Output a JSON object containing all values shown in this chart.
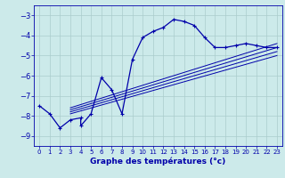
{
  "xlabel": "Graphe des températures (°c)",
  "bg_color": "#cceaea",
  "line_color": "#0000aa",
  "grid_color": "#aacccc",
  "xlim": [
    -0.5,
    23.5
  ],
  "ylim": [
    -9.5,
    -2.5
  ],
  "yticks": [
    -9,
    -8,
    -7,
    -6,
    -5,
    -4,
    -3
  ],
  "xticks": [
    0,
    1,
    2,
    3,
    4,
    5,
    6,
    7,
    8,
    9,
    10,
    11,
    12,
    13,
    14,
    15,
    16,
    17,
    18,
    19,
    20,
    21,
    22,
    23
  ],
  "series": [
    [
      0,
      -7.5
    ],
    [
      1,
      -7.9
    ],
    [
      2,
      -8.6
    ],
    [
      3,
      -8.2
    ],
    [
      4,
      -8.1
    ],
    [
      4,
      -8.5
    ],
    [
      5,
      -7.9
    ],
    [
      6,
      -6.1
    ],
    [
      7,
      -6.7
    ],
    [
      8,
      -7.9
    ],
    [
      9,
      -5.2
    ],
    [
      10,
      -4.1
    ],
    [
      11,
      -3.8
    ],
    [
      12,
      -3.6
    ],
    [
      13,
      -3.2
    ],
    [
      14,
      -3.3
    ],
    [
      15,
      -3.5
    ],
    [
      16,
      -4.1
    ],
    [
      17,
      -4.6
    ],
    [
      18,
      -4.6
    ],
    [
      19,
      -4.5
    ],
    [
      20,
      -4.4
    ],
    [
      21,
      -4.5
    ],
    [
      22,
      -4.6
    ],
    [
      23,
      -4.6
    ]
  ],
  "linear_lines": [
    [
      [
        3,
        -7.6
      ],
      [
        23,
        -4.4
      ]
    ],
    [
      [
        3,
        -7.7
      ],
      [
        23,
        -4.6
      ]
    ],
    [
      [
        3,
        -7.8
      ],
      [
        23,
        -4.8
      ]
    ],
    [
      [
        3,
        -7.9
      ],
      [
        23,
        -5.0
      ]
    ]
  ]
}
